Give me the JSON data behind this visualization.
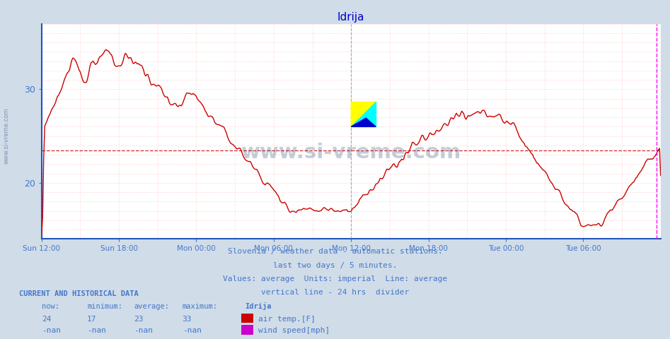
{
  "title": "Idrija",
  "title_color": "#0000cc",
  "bg_color": "#d0dce8",
  "plot_bg_color": "#ffffff",
  "line_color": "#cc0000",
  "line_width": 1.0,
  "avg_line_color": "#cc0000",
  "avg_line_y": 23.5,
  "grid_color_h": "#ffaaaa",
  "grid_color_v": "#ffaaaa",
  "vline_color": "#ff00ff",
  "divider_color": "#888888",
  "ylabel_color": "#4477cc",
  "xlabel_color": "#4477cc",
  "axis_color": "#2255bb",
  "yticks": [
    20,
    30
  ],
  "ymin": 14,
  "ymax": 37,
  "xmin": 0,
  "xmax": 576,
  "xtick_positions": [
    0,
    72,
    144,
    216,
    288,
    360,
    432,
    504
  ],
  "xtick_labels": [
    "Sun 12:00",
    "Sun 18:00",
    "Mon 00:00",
    "Mon 06:00",
    "Mon 12:00",
    "Mon 18:00",
    "Tue 00:00",
    "Tue 06:00"
  ],
  "watermark_text": "www.si-vreme.com",
  "watermark_color": "#1a3a6a",
  "watermark_alpha": 0.25,
  "vline_24h": 288,
  "right_vline_x": 572,
  "subtitle_lines": [
    "Slovenia / weather data - automatic stations.",
    "last two days / 5 minutes.",
    "Values: average  Units: imperial  Line: average",
    "vertical line - 24 hrs  divider"
  ],
  "subtitle_color": "#4477cc",
  "footer_title": "CURRENT AND HISTORICAL DATA",
  "footer_color": "#4477cc",
  "footer_headers": [
    "now:",
    "minimum:",
    "average:",
    "maximum:",
    "Idrija"
  ],
  "footer_row1": [
    "24",
    "17",
    "23",
    "33",
    "air temp.[F]"
  ],
  "footer_row2": [
    "-nan",
    "-nan",
    "-nan",
    "-nan",
    "wind speed[mph]"
  ],
  "legend_color1": "#cc0000",
  "legend_color2": "#cc00cc"
}
